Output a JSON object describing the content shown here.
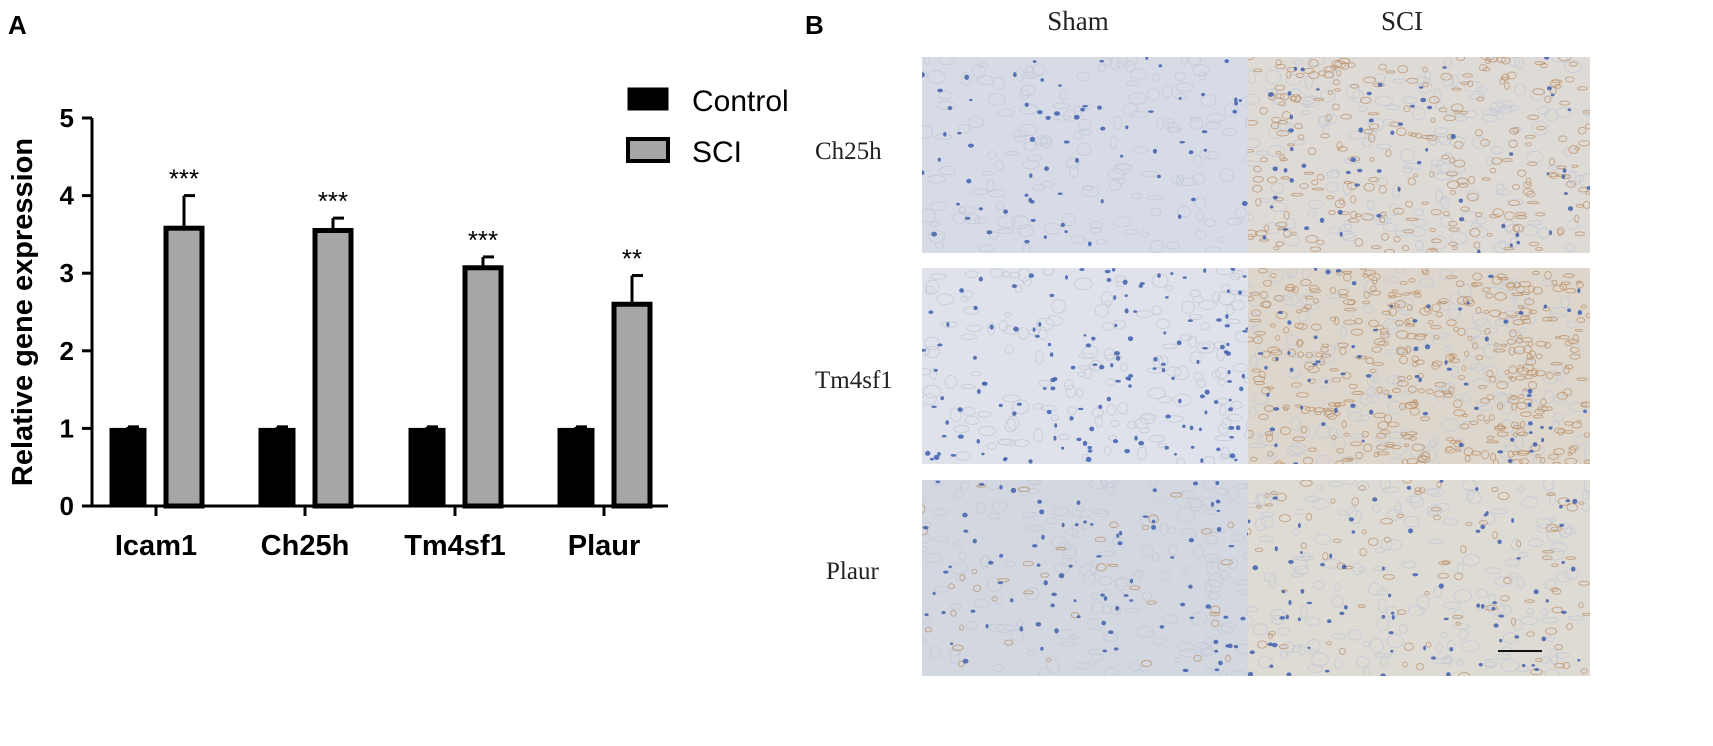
{
  "panels": {
    "a_letter": "A",
    "b_letter": "B"
  },
  "chart_data": {
    "type": "bar",
    "title": "",
    "xlabel": "",
    "ylabel": "Relative gene expression",
    "ylim": [
      0,
      5
    ],
    "yticks": [
      "0",
      "1",
      "2",
      "3",
      "4",
      "5"
    ],
    "categories": [
      "Icam1",
      "Ch25h",
      "Tm4sf1",
      "Plaur"
    ],
    "series": [
      {
        "name": "Control",
        "values": [
          1.0,
          1.0,
          1.0,
          1.0
        ],
        "errors": [
          0.02,
          0.02,
          0.02,
          0.02
        ],
        "color": "#000000"
      },
      {
        "name": "SCI",
        "values": [
          3.58,
          3.55,
          3.07,
          2.6
        ],
        "errors": [
          0.42,
          0.16,
          0.14,
          0.37
        ],
        "color": "#a6a6a6"
      }
    ],
    "significance": [
      "***",
      "***",
      "***",
      "**"
    ],
    "legend": "top-right",
    "grid": false
  },
  "histology": {
    "columns": [
      "Sham",
      "SCI"
    ],
    "rows": [
      "Ch25h",
      "Tm4sf1",
      "Plaur"
    ]
  },
  "colors": {
    "stain_background": "#d9dde4",
    "hematoxylin_nuclei": "#3f5fae",
    "dab_stain": "#b98a5e"
  }
}
